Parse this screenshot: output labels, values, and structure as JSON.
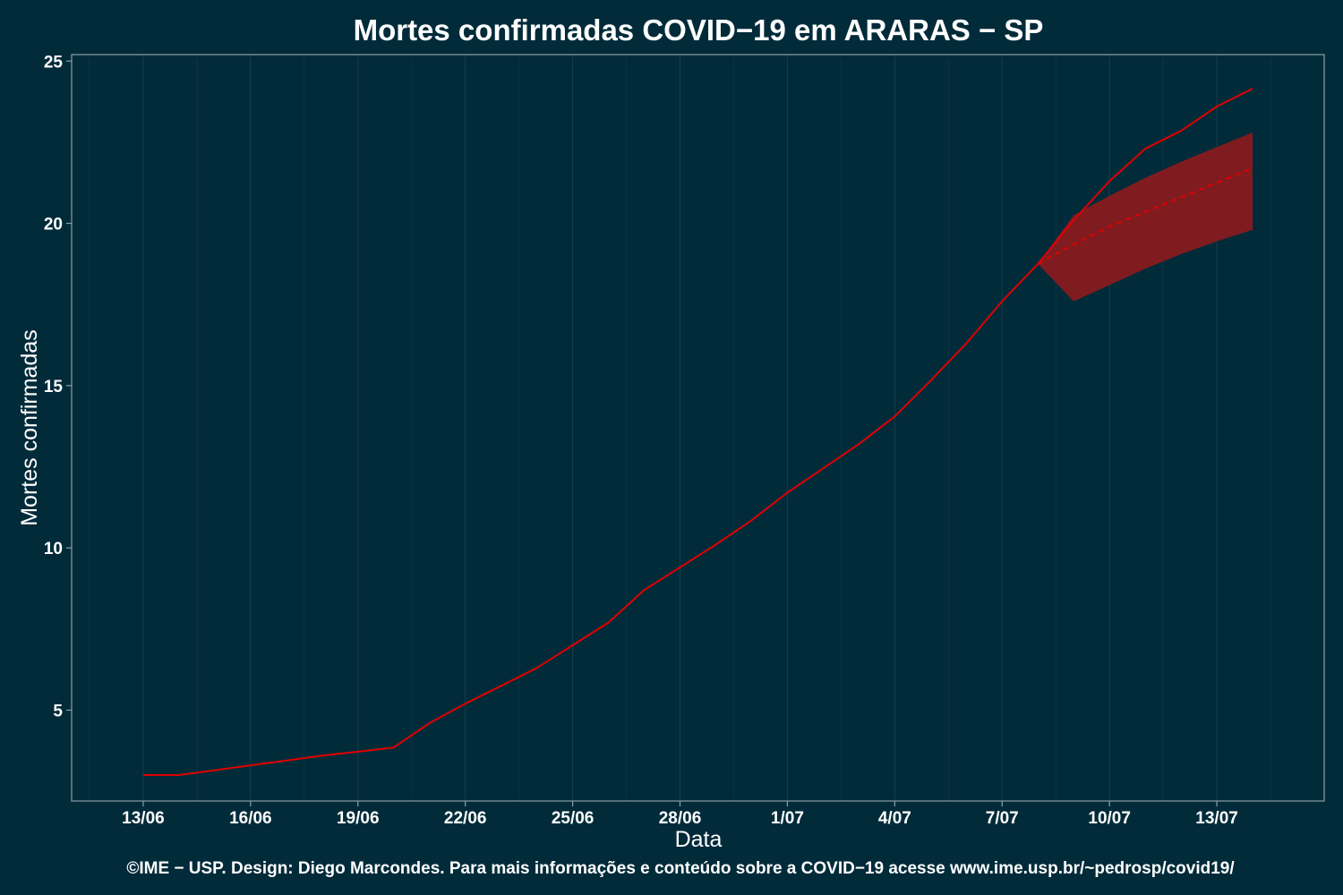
{
  "chart_data": {
    "type": "line",
    "title": "Mortes confirmadas COVID−19 em ARARAS − SP",
    "xlabel": "Data",
    "ylabel": "Mortes confirmadas",
    "caption": "©IME − USP. Design: Diego Marcondes. Para mais informações e conteúdo sobre a COVID−19 acesse www.ime.usp.br/~pedrosp/covid19/",
    "x_tick_labels": [
      "13/06",
      "16/06",
      "19/06",
      "22/06",
      "25/06",
      "28/06",
      "1/07",
      "4/07",
      "7/07",
      "10/07",
      "13/07"
    ],
    "x_tick_dates": [
      "2020-06-13",
      "2020-06-16",
      "2020-06-19",
      "2020-06-22",
      "2020-06-25",
      "2020-06-28",
      "2020-07-01",
      "2020-07-04",
      "2020-07-07",
      "2020-07-10",
      "2020-07-13"
    ],
    "xlim": [
      "2020-06-11",
      "2020-07-16"
    ],
    "ylim": [
      2.2,
      25.2
    ],
    "y_ticks": [
      5,
      10,
      15,
      20,
      25
    ],
    "grid": "vertical",
    "colors": {
      "background": "#022b3a",
      "line": "#e00000",
      "band": "#8b1a1e",
      "grid": "#123b4a",
      "axis": "#8c9ea4",
      "text": "#ffffff"
    },
    "series": [
      {
        "style": "solid",
        "x": [
          "2020-06-13",
          "2020-06-14",
          "2020-06-15",
          "2020-06-16",
          "2020-06-17",
          "2020-06-18",
          "2020-06-19",
          "2020-06-20",
          "2020-06-21",
          "2020-06-22",
          "2020-06-23",
          "2020-06-24",
          "2020-06-25",
          "2020-06-26",
          "2020-06-27",
          "2020-06-28",
          "2020-06-29",
          "2020-06-30",
          "2020-07-01",
          "2020-07-02",
          "2020-07-03",
          "2020-07-04",
          "2020-07-05",
          "2020-07-06",
          "2020-07-07",
          "2020-07-08",
          "2020-07-09",
          "2020-07-10",
          "2020-07-11",
          "2020-07-12",
          "2020-07-13",
          "2020-07-14"
        ],
        "y": [
          3.0,
          3.0,
          3.15,
          3.3,
          3.45,
          3.6,
          3.72,
          3.85,
          4.6,
          5.2,
          5.75,
          6.3,
          7.0,
          7.7,
          8.7,
          9.4,
          10.1,
          10.85,
          11.7,
          12.45,
          13.2,
          14.05,
          15.15,
          16.3,
          17.6,
          18.75,
          20.1,
          21.3,
          22.3,
          22.85,
          23.6,
          24.15
        ]
      },
      {
        "style": "dashed",
        "x": [
          "2020-07-08",
          "2020-07-09",
          "2020-07-10",
          "2020-07-11",
          "2020-07-12",
          "2020-07-13",
          "2020-07-14"
        ],
        "y": [
          18.75,
          19.35,
          19.9,
          20.35,
          20.8,
          21.25,
          21.7
        ]
      }
    ],
    "band": {
      "x": [
        "2020-07-08",
        "2020-07-09",
        "2020-07-10",
        "2020-07-11",
        "2020-07-12",
        "2020-07-13",
        "2020-07-14"
      ],
      "lower": [
        18.75,
        17.6,
        18.1,
        18.6,
        19.05,
        19.45,
        19.8
      ],
      "upper": [
        18.75,
        20.25,
        20.85,
        21.4,
        21.9,
        22.35,
        22.8
      ]
    }
  }
}
